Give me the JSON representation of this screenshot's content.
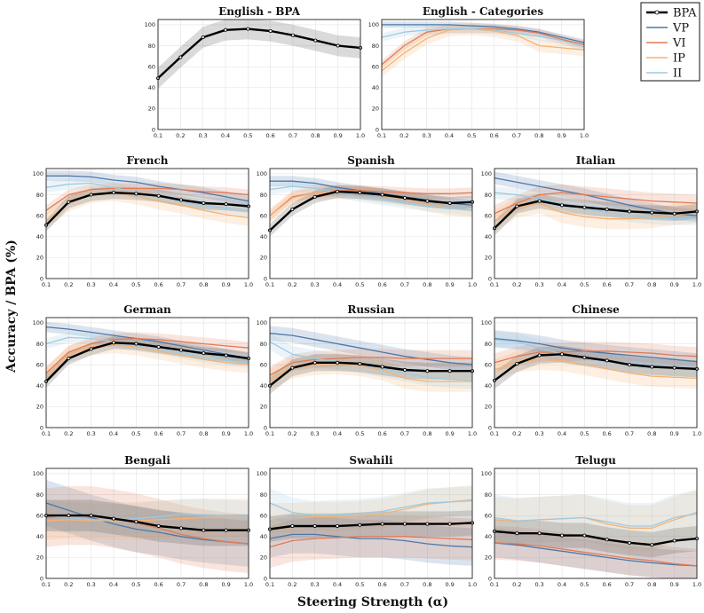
{
  "figure": {
    "ylabel": "Accuracy / BPA (%)",
    "xlabel": "Steering Strength (α)"
  },
  "legend": {
    "items": [
      {
        "key": "BPA",
        "label": "BPA",
        "color": "#000000"
      },
      {
        "key": "VP",
        "label": "VP",
        "color": "#4c78a8"
      },
      {
        "key": "VI",
        "label": "VI",
        "color": "#e07b54"
      },
      {
        "key": "IP",
        "label": "IP",
        "color": "#f5b273"
      },
      {
        "key": "II",
        "label": "II",
        "color": "#9ecae1"
      }
    ]
  },
  "chart_data": [
    {
      "type": "line",
      "title": "English - BPA",
      "x": [
        0.1,
        0.2,
        0.3,
        0.4,
        0.5,
        0.6,
        0.7,
        0.8,
        0.9,
        1.0
      ],
      "ylim": [
        0,
        105
      ],
      "yticks": [
        0,
        20,
        40,
        60,
        80,
        100
      ],
      "series": [
        {
          "name": "BPA",
          "values": [
            49,
            69,
            88,
            95,
            96,
            94,
            90,
            85,
            80,
            78
          ],
          "band": 10
        }
      ]
    },
    {
      "type": "line",
      "title": "English - Categories",
      "x": [
        0.1,
        0.2,
        0.3,
        0.4,
        0.5,
        0.6,
        0.7,
        0.8,
        0.9,
        1.0
      ],
      "ylim": [
        0,
        105
      ],
      "yticks": [
        0,
        20,
        40,
        60,
        80,
        100
      ],
      "series": [
        {
          "name": "VP",
          "values": [
            100,
            100,
            100,
            100,
            99,
            98,
            96,
            93,
            88,
            83
          ],
          "band": 3
        },
        {
          "name": "VI",
          "values": [
            62,
            80,
            93,
            96,
            96,
            96,
            95,
            92,
            86,
            81
          ],
          "band": 4
        },
        {
          "name": "IP",
          "values": [
            56,
            73,
            87,
            95,
            96,
            94,
            90,
            80,
            78,
            76
          ],
          "band": 6
        },
        {
          "name": "II",
          "values": [
            88,
            93,
            95,
            96,
            96,
            95,
            92,
            89,
            85,
            79
          ],
          "band": 4
        }
      ]
    },
    {
      "type": "line",
      "title": "French",
      "x": [
        0.1,
        0.2,
        0.3,
        0.4,
        0.5,
        0.6,
        0.7,
        0.8,
        0.9,
        1.0
      ],
      "ylim": [
        0,
        105
      ],
      "yticks": [
        0,
        20,
        40,
        60,
        80,
        100
      ],
      "series": [
        {
          "name": "VP",
          "values": [
            98,
            98,
            97,
            94,
            92,
            88,
            85,
            82,
            78,
            74
          ],
          "band": 5
        },
        {
          "name": "VI",
          "values": [
            65,
            80,
            85,
            86,
            86,
            86,
            85,
            83,
            82,
            80
          ],
          "band": 5
        },
        {
          "name": "IP",
          "values": [
            55,
            72,
            80,
            82,
            79,
            74,
            70,
            65,
            61,
            58
          ],
          "band": 8
        },
        {
          "name": "II",
          "values": [
            87,
            90,
            91,
            87,
            82,
            78,
            74,
            70,
            67,
            65
          ],
          "band": 5
        },
        {
          "name": "BPA",
          "values": [
            51,
            73,
            80,
            82,
            81,
            79,
            75,
            72,
            71,
            69
          ],
          "band": 6
        }
      ]
    },
    {
      "type": "line",
      "title": "Spanish",
      "x": [
        0.1,
        0.2,
        0.3,
        0.4,
        0.5,
        0.6,
        0.7,
        0.8,
        0.9,
        1.0
      ],
      "ylim": [
        0,
        105
      ],
      "yticks": [
        0,
        20,
        40,
        60,
        80,
        100
      ],
      "series": [
        {
          "name": "VP",
          "values": [
            93,
            93,
            91,
            87,
            84,
            81,
            78,
            75,
            72,
            70
          ],
          "band": 5
        },
        {
          "name": "VI",
          "values": [
            60,
            78,
            82,
            84,
            84,
            83,
            82,
            81,
            81,
            82
          ],
          "band": 5
        },
        {
          "name": "IP",
          "values": [
            60,
            77,
            82,
            83,
            82,
            79,
            76,
            71,
            67,
            65
          ],
          "band": 7
        },
        {
          "name": "II",
          "values": [
            85,
            88,
            86,
            82,
            78,
            75,
            72,
            69,
            67,
            65
          ],
          "band": 5
        },
        {
          "name": "BPA",
          "values": [
            46,
            66,
            78,
            83,
            82,
            80,
            77,
            74,
            72,
            73
          ],
          "band": 6
        }
      ]
    },
    {
      "type": "line",
      "title": "Italian",
      "x": [
        0.1,
        0.2,
        0.3,
        0.4,
        0.5,
        0.6,
        0.7,
        0.8,
        0.9,
        1.0
      ],
      "ylim": [
        0,
        105
      ],
      "yticks": [
        0,
        20,
        40,
        60,
        80,
        100
      ],
      "series": [
        {
          "name": "VP",
          "values": [
            96,
            92,
            88,
            84,
            80,
            75,
            70,
            66,
            62,
            60
          ],
          "band": 6
        },
        {
          "name": "VI",
          "values": [
            62,
            72,
            80,
            82,
            80,
            78,
            76,
            74,
            73,
            72
          ],
          "band": 8
        },
        {
          "name": "IP",
          "values": [
            55,
            68,
            72,
            63,
            59,
            57,
            57,
            58,
            61,
            63
          ],
          "band": 10
        },
        {
          "name": "II",
          "values": [
            82,
            80,
            76,
            72,
            67,
            63,
            60,
            58,
            57,
            57
          ],
          "band": 6
        },
        {
          "name": "BPA",
          "values": [
            48,
            69,
            74,
            70,
            68,
            66,
            64,
            63,
            62,
            64
          ],
          "band": 7
        }
      ]
    },
    {
      "type": "line",
      "title": "German",
      "x": [
        0.1,
        0.2,
        0.3,
        0.4,
        0.5,
        0.6,
        0.7,
        0.8,
        0.9,
        1.0
      ],
      "ylim": [
        0,
        105
      ],
      "yticks": [
        0,
        20,
        40,
        60,
        80,
        100
      ],
      "series": [
        {
          "name": "VP",
          "values": [
            96,
            94,
            91,
            88,
            85,
            82,
            78,
            74,
            70,
            66
          ],
          "band": 5
        },
        {
          "name": "VI",
          "values": [
            52,
            72,
            80,
            84,
            85,
            84,
            82,
            80,
            78,
            76
          ],
          "band": 6
        },
        {
          "name": "IP",
          "values": [
            50,
            70,
            77,
            79,
            77,
            73,
            69,
            65,
            62,
            60
          ],
          "band": 8
        },
        {
          "name": "II",
          "values": [
            80,
            86,
            85,
            82,
            78,
            75,
            71,
            67,
            64,
            62
          ],
          "band": 5
        },
        {
          "name": "BPA",
          "values": [
            44,
            66,
            75,
            81,
            80,
            77,
            74,
            71,
            69,
            66
          ],
          "band": 6
        }
      ]
    },
    {
      "type": "line",
      "title": "Russian",
      "x": [
        0.1,
        0.2,
        0.3,
        0.4,
        0.5,
        0.6,
        0.7,
        0.8,
        0.9,
        1.0
      ],
      "ylim": [
        0,
        105
      ],
      "yticks": [
        0,
        20,
        40,
        60,
        80,
        100
      ],
      "series": [
        {
          "name": "VP",
          "values": [
            90,
            88,
            84,
            80,
            76,
            72,
            68,
            65,
            62,
            60
          ],
          "band": 7
        },
        {
          "name": "VI",
          "values": [
            50,
            62,
            65,
            66,
            67,
            67,
            66,
            66,
            66,
            66
          ],
          "band": 8
        },
        {
          "name": "IP",
          "values": [
            46,
            57,
            60,
            61,
            59,
            55,
            47,
            44,
            44,
            44
          ],
          "band": 10
        },
        {
          "name": "II",
          "values": [
            82,
            70,
            66,
            63,
            60,
            56,
            52,
            48,
            46,
            45
          ],
          "band": 8
        },
        {
          "name": "BPA",
          "values": [
            40,
            57,
            62,
            62,
            61,
            58,
            55,
            54,
            54,
            54
          ],
          "band": 8
        }
      ]
    },
    {
      "type": "line",
      "title": "Chinese",
      "x": [
        0.1,
        0.2,
        0.3,
        0.4,
        0.5,
        0.6,
        0.7,
        0.8,
        0.9,
        1.0
      ],
      "ylim": [
        0,
        105
      ],
      "yticks": [
        0,
        20,
        40,
        60,
        80,
        100
      ],
      "series": [
        {
          "name": "VP",
          "values": [
            85,
            83,
            80,
            76,
            73,
            71,
            69,
            67,
            65,
            63
          ],
          "band": 8
        },
        {
          "name": "VI",
          "values": [
            62,
            68,
            72,
            72,
            73,
            73,
            72,
            71,
            69,
            68
          ],
          "band": 9
        },
        {
          "name": "IP",
          "values": [
            55,
            63,
            65,
            64,
            60,
            56,
            52,
            49,
            48,
            47
          ],
          "band": 10
        },
        {
          "name": "II",
          "values": [
            84,
            82,
            76,
            70,
            66,
            63,
            61,
            59,
            57,
            55
          ],
          "band": 8
        },
        {
          "name": "BPA",
          "values": [
            45,
            61,
            69,
            70,
            67,
            64,
            60,
            58,
            57,
            56
          ],
          "band": 8
        }
      ]
    },
    {
      "type": "line",
      "title": "Bengali",
      "x": [
        0.1,
        0.2,
        0.3,
        0.4,
        0.5,
        0.6,
        0.7,
        0.8,
        0.9,
        1.0
      ],
      "ylim": [
        0,
        105
      ],
      "yticks": [
        0,
        20,
        40,
        60,
        80,
        100
      ],
      "series": [
        {
          "name": "VP",
          "values": [
            72,
            65,
            58,
            52,
            47,
            44,
            40,
            37,
            35,
            33
          ],
          "band": 22
        },
        {
          "name": "VI",
          "values": [
            58,
            60,
            60,
            57,
            53,
            48,
            42,
            38,
            35,
            33
          ],
          "band": 28
        },
        {
          "name": "IP",
          "values": [
            55,
            56,
            55,
            55,
            55,
            56,
            57,
            58,
            58,
            58
          ],
          "band": 18
        },
        {
          "name": "II",
          "values": [
            60,
            58,
            56,
            56,
            57,
            59,
            61,
            61,
            60,
            59
          ],
          "band": 15
        },
        {
          "name": "BPA",
          "values": [
            60,
            60,
            60,
            57,
            54,
            50,
            48,
            46,
            46,
            46
          ],
          "band": 15
        }
      ]
    },
    {
      "type": "line",
      "title": "Swahili",
      "x": [
        0.1,
        0.2,
        0.3,
        0.4,
        0.5,
        0.6,
        0.7,
        0.8,
        0.9,
        1.0
      ],
      "ylim": [
        0,
        105
      ],
      "yticks": [
        0,
        20,
        40,
        60,
        80,
        100
      ],
      "series": [
        {
          "name": "VP",
          "values": [
            38,
            42,
            42,
            40,
            38,
            38,
            36,
            33,
            31,
            30
          ],
          "band": 18
        },
        {
          "name": "VI",
          "values": [
            30,
            36,
            38,
            39,
            40,
            40,
            40,
            39,
            38,
            37
          ],
          "band": 20
        },
        {
          "name": "IP",
          "values": [
            58,
            58,
            59,
            59,
            60,
            62,
            66,
            71,
            73,
            75
          ],
          "band": 14
        },
        {
          "name": "II",
          "values": [
            72,
            63,
            60,
            61,
            62,
            64,
            68,
            72,
            73,
            74
          ],
          "band": 14
        },
        {
          "name": "BPA",
          "values": [
            47,
            50,
            50,
            50,
            51,
            52,
            52,
            52,
            52,
            53
          ],
          "band": 12
        }
      ]
    },
    {
      "type": "line",
      "title": "Telugu",
      "x": [
        0.1,
        0.2,
        0.3,
        0.4,
        0.5,
        0.6,
        0.7,
        0.8,
        0.9,
        1.0
      ],
      "ylim": [
        0,
        105
      ],
      "yticks": [
        0,
        20,
        40,
        60,
        80,
        100
      ],
      "series": [
        {
          "name": "VP",
          "values": [
            34,
            32,
            29,
            26,
            23,
            20,
            17,
            15,
            13,
            12
          ],
          "band": 14
        },
        {
          "name": "VI",
          "values": [
            34,
            33,
            31,
            28,
            25,
            22,
            19,
            17,
            14,
            12
          ],
          "band": 16
        },
        {
          "name": "IP",
          "values": [
            56,
            54,
            56,
            57,
            58,
            52,
            48,
            48,
            56,
            63
          ],
          "band": 22
        },
        {
          "name": "II",
          "values": [
            58,
            55,
            56,
            57,
            58,
            54,
            50,
            50,
            58,
            62
          ],
          "band": 22
        },
        {
          "name": "BPA",
          "values": [
            45,
            43,
            43,
            41,
            41,
            37,
            34,
            32,
            36,
            38
          ],
          "band": 12
        }
      ]
    }
  ]
}
